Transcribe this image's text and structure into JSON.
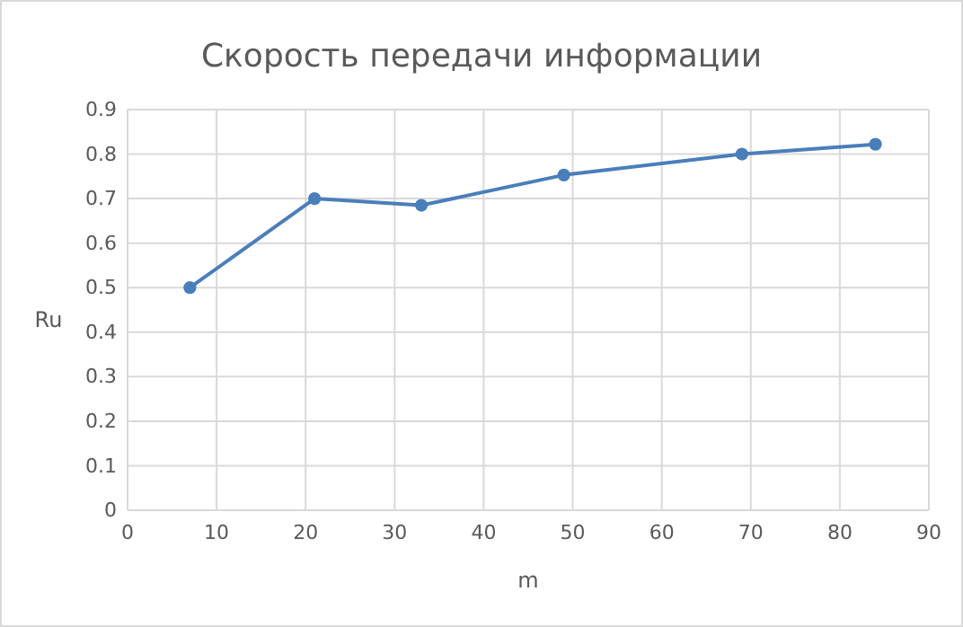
{
  "chart_data": {
    "type": "line",
    "title": "Скорость передачи информации",
    "xlabel": "m",
    "ylabel": "Ru",
    "x": [
      7,
      21,
      33,
      49,
      69,
      84
    ],
    "series": [
      {
        "color": "#4a7ebb",
        "values": [
          0.5,
          0.7,
          0.685,
          0.753,
          0.8,
          0.822
        ]
      }
    ],
    "xlim": [
      0,
      90
    ],
    "xticks": [
      0,
      10,
      20,
      30,
      40,
      50,
      60,
      70,
      80,
      90
    ],
    "ylim": [
      0,
      0.9
    ],
    "yticks": [
      0,
      0.1,
      0.2,
      0.3,
      0.4,
      0.5,
      0.6,
      0.7,
      0.8,
      0.9
    ],
    "grid": true,
    "marker": "circle",
    "line_style": "solid"
  }
}
